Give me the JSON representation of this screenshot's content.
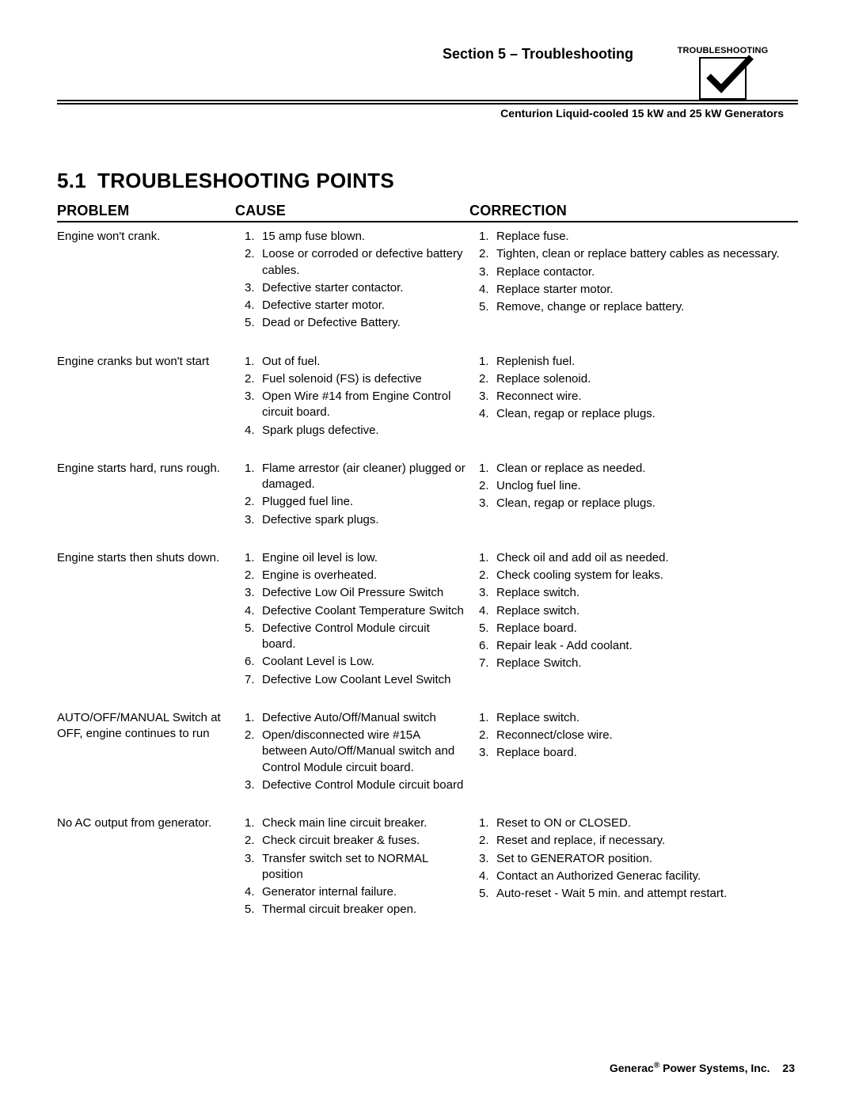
{
  "header": {
    "section_title": "Section 5 – Troubleshooting",
    "subtitle": "Centurion Liquid-cooled 15 kW and 25 kW Generators",
    "tab_label": "TROUBLESHOOTING"
  },
  "heading": {
    "number": "5.1",
    "text": "TROUBLESHOOTING POINTS"
  },
  "columns": {
    "problem": "PROBLEM",
    "cause": "CAUSE",
    "correction": "CORRECTION"
  },
  "rows": [
    {
      "problem": "Engine won't crank.",
      "causes": [
        "15 amp fuse blown.",
        "Loose or corroded or defective battery cables.",
        "Defective starter contactor.",
        "Defective starter motor.",
        "Dead or Defective Battery."
      ],
      "corrections": [
        "Replace fuse.",
        "Tighten, clean or replace battery cables as necessary.",
        "Replace contactor.",
        "Replace starter motor.",
        "Remove, change or replace battery."
      ]
    },
    {
      "problem": "Engine cranks but won't start",
      "causes": [
        "Out of fuel.",
        "Fuel solenoid (FS) is defective",
        "Open Wire #14 from Engine Control circuit board.",
        "Spark plugs defective."
      ],
      "corrections": [
        "Replenish fuel.",
        "Replace solenoid.",
        "Reconnect wire.",
        "Clean, regap or replace plugs."
      ]
    },
    {
      "problem": "Engine starts hard, runs rough.",
      "causes": [
        "Flame arrestor (air cleaner) plugged or damaged.",
        "Plugged fuel line.",
        "Defective spark plugs."
      ],
      "corrections": [
        "Clean or replace as needed.",
        "Unclog fuel line.",
        "Clean, regap or replace plugs."
      ]
    },
    {
      "problem": "Engine starts then shuts down.",
      "causes": [
        "Engine oil level is low.",
        "Engine is overheated.",
        "Defective Low Oil Pressure Switch",
        "Defective Coolant Temperature Switch",
        "Defective Control Module circuit board.",
        "Coolant Level is Low.",
        "Defective Low Coolant Level Switch"
      ],
      "corrections": [
        "Check oil and add oil as needed.",
        "Check cooling system for leaks.",
        "Replace switch.",
        "Replace switch.",
        "Replace board.",
        "Repair leak - Add coolant.",
        "Replace Switch."
      ]
    },
    {
      "problem": "AUTO/OFF/MANUAL Switch at OFF, engine continues to run",
      "causes": [
        "Defective Auto/Off/Manual switch",
        "Open/disconnected wire #15A between Auto/Off/Manual switch and Control Module circuit board.",
        "Defective Control Module circuit board"
      ],
      "corrections": [
        "Replace switch.",
        "Reconnect/close wire.",
        "Replace board."
      ]
    },
    {
      "problem": "No AC output from generator.",
      "causes": [
        "Check main line circuit breaker.",
        "Check circuit breaker & fuses.",
        "Transfer switch set to NORMAL position",
        "Generator internal failure.",
        "Thermal circuit breaker open."
      ],
      "corrections": [
        "Reset to ON or CLOSED.",
        "Reset and replace, if necessary.",
        "Set to GENERATOR position.",
        "Contact an Authorized Generac facility.",
        "Auto-reset - Wait 5 min. and attempt restart."
      ]
    }
  ],
  "footer": {
    "company": "Generac® Power Systems, Inc.",
    "page": "23"
  }
}
